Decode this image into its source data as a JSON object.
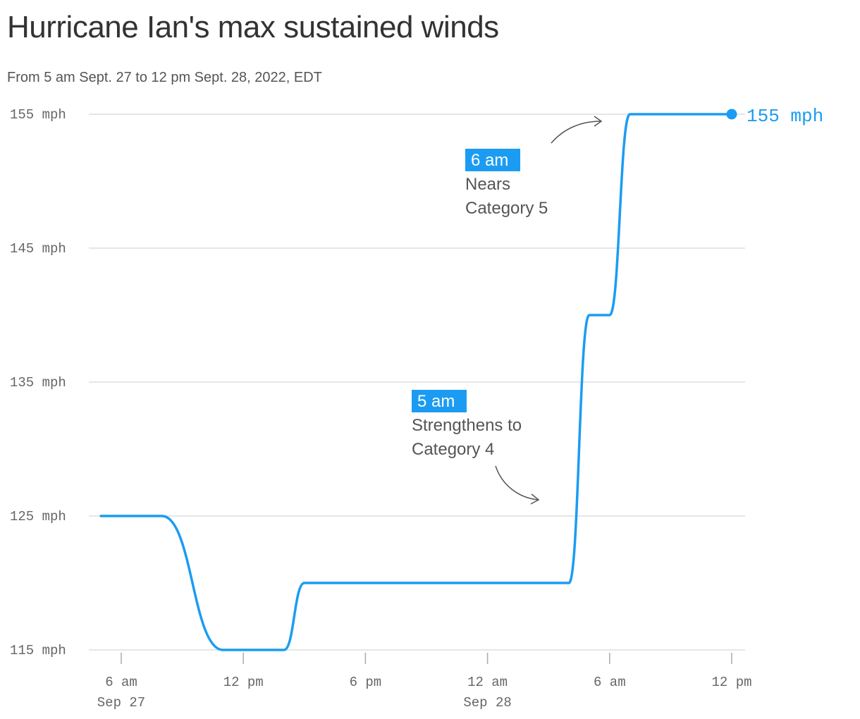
{
  "title": "Hurricane Ian's max sustained winds",
  "subtitle": "From 5 am Sept. 27 to 12 pm Sept. 28, 2022, EDT",
  "colors": {
    "line": "#1b9cf2",
    "grid": "#dddddd",
    "text": "#555555",
    "axis": "#666666"
  },
  "chart_data": {
    "type": "line",
    "x_unit": "hours after midnight Sep 27, EDT",
    "y_unit": "mph",
    "ylim": [
      115,
      155
    ],
    "xlim": [
      5,
      36
    ],
    "grid": true,
    "y_ticks": [
      {
        "value": 155,
        "label": "155 mph"
      },
      {
        "value": 145,
        "label": "145 mph"
      },
      {
        "value": 135,
        "label": "135 mph"
      },
      {
        "value": 125,
        "label": "125 mph"
      },
      {
        "value": 115,
        "label": "115 mph"
      }
    ],
    "x_ticks": [
      {
        "value": 6,
        "line1": "6 am",
        "line2": "Sep 27"
      },
      {
        "value": 12,
        "line1": "12 pm",
        "line2": ""
      },
      {
        "value": 18,
        "line1": "6 pm",
        "line2": ""
      },
      {
        "value": 24,
        "line1": "12 am",
        "line2": "Sep 28"
      },
      {
        "value": 30,
        "line1": "6 am",
        "line2": ""
      },
      {
        "value": 36,
        "line1": "12 pm",
        "line2": ""
      }
    ],
    "series": [
      {
        "values": [
          [
            5,
            125
          ],
          [
            8,
            125
          ],
          [
            11,
            115
          ],
          [
            12,
            115
          ],
          [
            14,
            115
          ],
          [
            15,
            120
          ],
          [
            28,
            120
          ],
          [
            29,
            140
          ],
          [
            30,
            140
          ],
          [
            31,
            155
          ],
          [
            32,
            155
          ],
          [
            36,
            155
          ]
        ]
      }
    ],
    "end_label": "155 mph",
    "annotations": [
      {
        "time": "5 am",
        "lines": [
          "Strengthens to",
          "Category 4"
        ]
      },
      {
        "time": "6 am",
        "lines": [
          "Nears",
          "Category 5"
        ]
      }
    ]
  }
}
